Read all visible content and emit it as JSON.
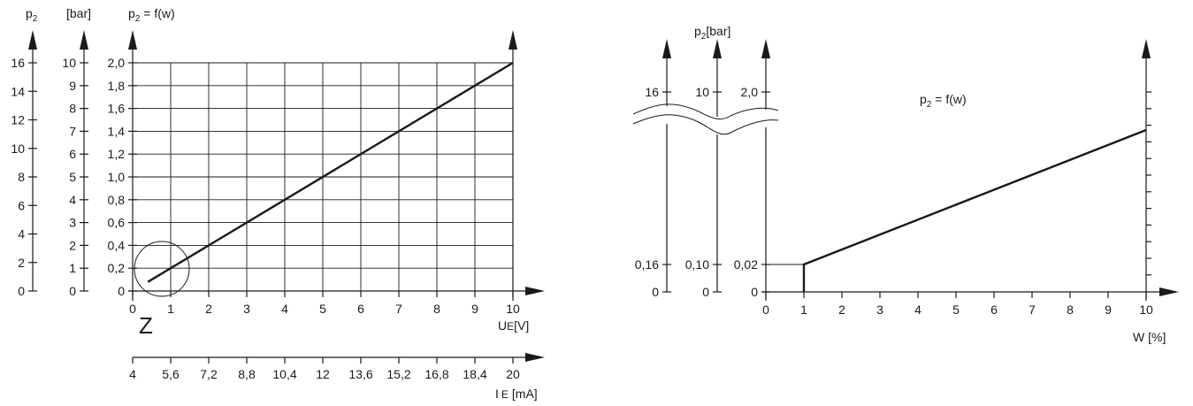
{
  "chart_data": [
    {
      "type": "line",
      "title": "p₂ = f(w)",
      "x_axis": {
        "label": "U",
        "label_sub": "E",
        "label_unit": "[V]",
        "ticks": [
          "0",
          "1",
          "2",
          "3",
          "4",
          "5",
          "6",
          "7",
          "8",
          "9",
          "10"
        ],
        "range": [
          0,
          10
        ]
      },
      "x2_axis": {
        "label": "I",
        "label_sub": "E",
        "label_unit": "[mA]",
        "ticks": [
          "4",
          "5,6",
          "7,2",
          "8,8",
          "10,4",
          "12",
          "13,6",
          "15,2",
          "16,8",
          "18,4",
          "20"
        ],
        "range": [
          4,
          20
        ]
      },
      "y_axes": [
        {
          "label": "p",
          "label_sub": "2",
          "ticks": [
            "0",
            "2",
            "4",
            "6",
            "8",
            "10",
            "12",
            "14",
            "16"
          ]
        },
        {
          "label": "[bar]",
          "ticks": [
            "0",
            "1",
            "2",
            "3",
            "4",
            "5",
            "6",
            "7",
            "8",
            "9",
            "10"
          ]
        },
        {
          "label": "",
          "ticks": [
            "0",
            "0,2",
            "0,4",
            "0,6",
            "0,8",
            "1,0",
            "1,2",
            "1,4",
            "1,6",
            "1,8",
            "2,0"
          ],
          "range": [
            0,
            2.0
          ]
        }
      ],
      "series": [
        {
          "x": [
            0.4,
            10
          ],
          "y": [
            0.08,
            2.0
          ]
        }
      ],
      "annotation": "Z",
      "grid": true
    },
    {
      "type": "line",
      "title": "p₂ = f(w)",
      "y_label": "p",
      "y_label_sub": "2",
      "y_label_unit": "[bar]",
      "x_axis": {
        "label": "W [%]",
        "ticks": [
          "0",
          "1",
          "2",
          "3",
          "4",
          "5",
          "6",
          "7",
          "8",
          "9",
          "10"
        ],
        "range": [
          0,
          10
        ]
      },
      "y_axes": [
        {
          "ticks_low": [
            "0",
            "0,16"
          ],
          "tick_top": "16"
        },
        {
          "ticks_low": [
            "0",
            "0,10"
          ],
          "tick_top": "10"
        },
        {
          "ticks_low": [
            "0",
            "0,02"
          ],
          "tick_top": "2,0"
        }
      ],
      "series": [
        {
          "x": [
            1,
            1,
            10
          ],
          "y": [
            0,
            0.02,
            2.0
          ]
        }
      ],
      "axis_break": true
    }
  ]
}
